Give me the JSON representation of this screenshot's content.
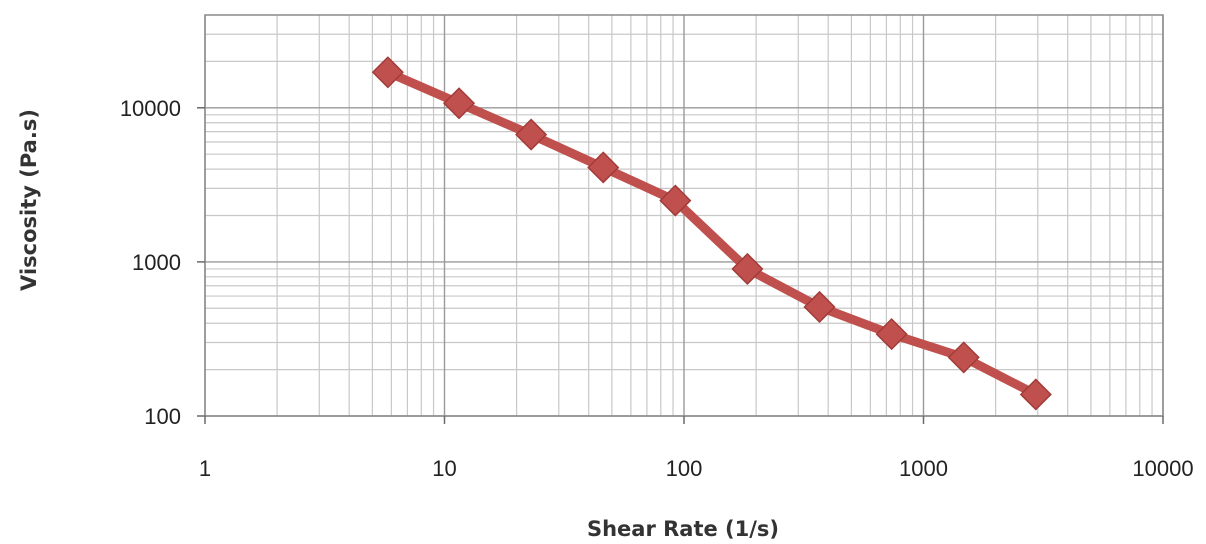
{
  "chart_data": {
    "type": "line",
    "title": "",
    "xlabel": "Shear Rate (1/s)",
    "ylabel": "Viscosity (Pa.s)",
    "x_scale": "log",
    "y_scale": "log",
    "xlim": [
      1,
      10000
    ],
    "ylim": [
      100,
      40000
    ],
    "x_ticks": [
      {
        "value": 1,
        "label": "1"
      },
      {
        "value": 10,
        "label": "10"
      },
      {
        "value": 100,
        "label": "100"
      },
      {
        "value": 1000,
        "label": "1000"
      },
      {
        "value": 10000,
        "label": "10000"
      }
    ],
    "y_ticks": [
      {
        "value": 100,
        "label": "100"
      },
      {
        "value": 1000,
        "label": "1000"
      },
      {
        "value": 10000,
        "label": "10000"
      }
    ],
    "grid": true,
    "legend": "none",
    "series": [
      {
        "color": "#c0504d",
        "marker": "diamond",
        "points": [
          {
            "x": 5.8,
            "y": 17000
          },
          {
            "x": 11.5,
            "y": 10700
          },
          {
            "x": 23,
            "y": 6700
          },
          {
            "x": 46,
            "y": 4100
          },
          {
            "x": 92,
            "y": 2500
          },
          {
            "x": 184,
            "y": 900
          },
          {
            "x": 368,
            "y": 510
          },
          {
            "x": 736,
            "y": 340
          },
          {
            "x": 1472,
            "y": 240
          },
          {
            "x": 2944,
            "y": 138
          }
        ]
      }
    ]
  }
}
